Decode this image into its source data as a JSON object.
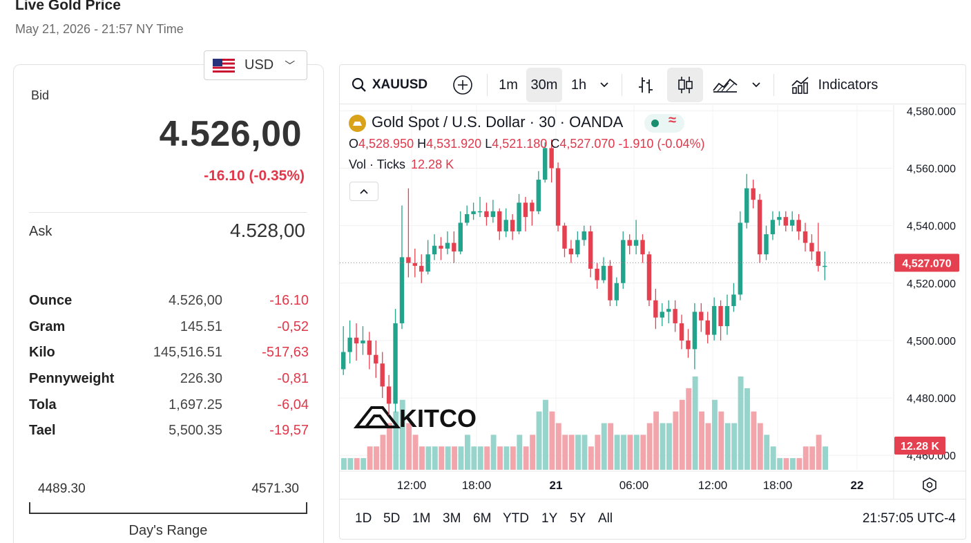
{
  "page": {
    "title": "Live Gold Price",
    "date": "May 21, 2026 - 21:57 NY Time"
  },
  "currency": {
    "code": "USD"
  },
  "quote": {
    "bid_label": "Bid",
    "bid": "4.526,00",
    "change": "-16.10 (-0.35%)",
    "ask_label": "Ask",
    "ask": "4.528,00"
  },
  "units": [
    {
      "name": "Ounce",
      "price": "4.526,00",
      "change": "-16.10"
    },
    {
      "name": "Gram",
      "price": "145.51",
      "change": "-0,52"
    },
    {
      "name": "Kilo",
      "price": "145,516.51",
      "change": "-517,63"
    },
    {
      "name": "Pennyweight",
      "price": "226.30",
      "change": "-0,81"
    },
    {
      "name": "Tola",
      "price": "1,697.25",
      "change": "-6,04"
    },
    {
      "name": "Tael",
      "price": "5,500.35",
      "change": "-19,57"
    }
  ],
  "day_range": {
    "low": "4489.30",
    "high": "4571.30",
    "label": "Day's Range"
  },
  "toolbar": {
    "symbol": "XAUUSD",
    "intervals": [
      "1m",
      "30m",
      "1h"
    ],
    "active_interval": "30m",
    "indicators_label": "Indicators"
  },
  "legend": {
    "title": "Gold Spot / U.S. Dollar · 30 · OANDA",
    "status_wave": "≈",
    "o_key": "O",
    "o": "4,528.950",
    "h_key": "H",
    "h": "4,531.920",
    "l_key": "L",
    "l": "4,521.180",
    "c_key": "C",
    "c": "4,527.070",
    "chg": "-1.910 (-0.04%)",
    "vol_label": "Vol · Ticks",
    "vol": "12.28 K",
    "collapse": "^"
  },
  "watermark": "KITCO",
  "price_axis": {
    "ticks": [
      "4,580.000",
      "4,560.000",
      "4,540.000",
      "4,520.000",
      "4,500.000",
      "4,480.000",
      "4,460.000"
    ],
    "current_price": "4,527.070",
    "current_volume": "12.28 K"
  },
  "time_axis": {
    "labels": [
      "12:00",
      "18:00",
      "21",
      "06:00",
      "12:00",
      "18:00",
      "22"
    ]
  },
  "bottom": {
    "ranges": [
      "1D",
      "5D",
      "1M",
      "3M",
      "6M",
      "YTD",
      "1Y",
      "5Y",
      "All"
    ],
    "clock": "21:57:05 UTC-4"
  },
  "colors": {
    "up": "#22a38c",
    "down": "#e5404f",
    "up_vol": "#97d4cb",
    "down_vol": "#f2a5ab",
    "accent_red": "#e0384a"
  },
  "chart_data": {
    "type": "candlestick",
    "y_range": [
      4455,
      4582
    ],
    "ticks": [
      4580,
      4560,
      4540,
      4520,
      4500,
      4480,
      4460
    ],
    "current": 4527.07,
    "candles": [
      [
        4490,
        4496,
        4505,
        4488,
        1
      ],
      [
        4496,
        4501,
        4507,
        4492,
        1
      ],
      [
        4501,
        4499,
        4506,
        4493,
        1
      ],
      [
        4499,
        4500,
        4505,
        4495,
        1
      ],
      [
        4500,
        4495,
        4503,
        4490,
        2
      ],
      [
        4495,
        4492,
        4500,
        4487,
        2
      ],
      [
        4492,
        4484,
        4496,
        4480,
        3
      ],
      [
        4484,
        4478,
        4488,
        4474,
        4
      ],
      [
        4478,
        4506,
        4511,
        4475,
        5
      ],
      [
        4506,
        4529,
        4547,
        4504,
        6
      ],
      [
        4529,
        4527,
        4553,
        4522,
        4
      ],
      [
        4527,
        4526,
        4532,
        4522,
        3
      ],
      [
        4526,
        4524,
        4530,
        4520,
        2
      ],
      [
        4524,
        4530,
        4535,
        4523,
        2
      ],
      [
        4530,
        4533,
        4537,
        4528,
        2
      ],
      [
        4533,
        4532,
        4536,
        4528,
        2
      ],
      [
        4532,
        4534,
        4538,
        4530,
        2
      ],
      [
        4534,
        4531,
        4538,
        4527,
        2
      ],
      [
        4531,
        4541,
        4545,
        4530,
        2
      ],
      [
        4541,
        4544,
        4547,
        4540,
        3
      ],
      [
        4544,
        4545,
        4548,
        4542,
        2
      ],
      [
        4545,
        4545,
        4550,
        4543,
        2
      ],
      [
        4545,
        4543,
        4548,
        4540,
        2
      ],
      [
        4543,
        4545,
        4549,
        4541,
        3
      ],
      [
        4545,
        4538,
        4546,
        4535,
        2
      ],
      [
        4538,
        4542,
        4546,
        4536,
        2
      ],
      [
        4542,
        4538,
        4544,
        4535,
        2
      ],
      [
        4538,
        4548,
        4551,
        4537,
        3
      ],
      [
        4548,
        4543,
        4550,
        4538,
        2
      ],
      [
        4548,
        4545,
        4549,
        4540,
        3
      ],
      [
        4545,
        4556,
        4559,
        4544,
        5
      ],
      [
        4556,
        4567,
        4569,
        4555,
        6
      ],
      [
        4567,
        4560,
        4570,
        4555,
        5
      ],
      [
        4560,
        4540,
        4562,
        4538,
        4
      ],
      [
        4540,
        4532,
        4541,
        4529,
        3
      ],
      [
        4532,
        4530,
        4535,
        4527,
        3
      ],
      [
        4530,
        4535,
        4538,
        4529,
        3
      ],
      [
        4535,
        4538,
        4540,
        4533,
        3
      ],
      [
        4538,
        4525,
        4540,
        4522,
        2
      ],
      [
        4525,
        4521,
        4527,
        4518,
        3
      ],
      [
        4521,
        4526,
        4529,
        4520,
        4
      ],
      [
        4526,
        4514,
        4528,
        4512,
        4
      ],
      [
        4514,
        4520,
        4522,
        4512,
        3
      ],
      [
        4520,
        4535,
        4538,
        4518,
        3
      ],
      [
        4535,
        4533,
        4537,
        4530,
        3
      ],
      [
        4533,
        4535,
        4542,
        4530,
        3
      ],
      [
        4535,
        4530,
        4537,
        4527,
        3
      ],
      [
        4530,
        4514,
        4531,
        4512,
        4
      ],
      [
        4514,
        4508,
        4518,
        4504,
        5
      ],
      [
        4508,
        4510,
        4513,
        4505,
        4
      ],
      [
        4510,
        4511,
        4514,
        4506,
        4
      ],
      [
        4511,
        4506,
        4514,
        4503,
        5
      ],
      [
        4506,
        4500,
        4509,
        4497,
        6
      ],
      [
        4500,
        4497,
        4504,
        4494,
        7
      ],
      [
        4497,
        4510,
        4513,
        4490,
        8
      ],
      [
        4510,
        4507,
        4513,
        4503,
        5
      ],
      [
        4507,
        4502,
        4510,
        4499,
        4
      ],
      [
        4502,
        4512,
        4515,
        4500,
        6
      ],
      [
        4512,
        4505,
        4514,
        4500,
        5
      ],
      [
        4505,
        4512,
        4516,
        4502,
        4
      ],
      [
        4512,
        4516,
        4520,
        4510,
        4
      ],
      [
        4516,
        4541,
        4545,
        4514,
        8
      ],
      [
        4541,
        4553,
        4558,
        4539,
        7
      ],
      [
        4553,
        4549,
        4556,
        4546,
        5
      ],
      [
        4549,
        4530,
        4551,
        4527,
        4
      ],
      [
        4530,
        4537,
        4540,
        4528,
        3
      ],
      [
        4537,
        4542,
        4545,
        4535,
        2
      ],
      [
        4542,
        4543,
        4545,
        4540,
        1
      ],
      [
        4543,
        4540,
        4545,
        4538,
        1
      ],
      [
        4540,
        4542,
        4545,
        4538,
        1
      ],
      [
        4542,
        4538,
        4544,
        4535,
        1
      ],
      [
        4538,
        4534,
        4541,
        4531,
        2
      ],
      [
        4534,
        4531,
        4537,
        4528,
        2
      ],
      [
        4531,
        4526,
        4541,
        4524,
        3
      ],
      [
        4526,
        4526,
        4531,
        4521,
        2
      ]
    ]
  }
}
